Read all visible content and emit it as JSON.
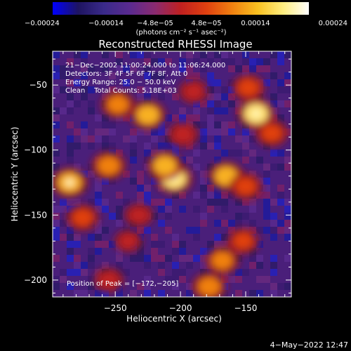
{
  "chart_data": {
    "type": "heatmap",
    "title": "Reconstructed RHESSI Image",
    "xlabel": "Heliocentric X (arcsec)",
    "ylabel": "Heliocentric Y (arcsec)",
    "xlim": [
      -298,
      -115
    ],
    "ylim": [
      -213,
      -24
    ],
    "x_ticks": [
      -250,
      -200,
      -150
    ],
    "x_tick_labels": [
      "−250",
      "−200",
      "−150"
    ],
    "y_ticks": [
      -50,
      -100,
      -150,
      -200
    ],
    "y_tick_labels": [
      "−50",
      "−100",
      "−150",
      "−200"
    ],
    "colorbar": {
      "range": [
        -0.00024,
        0.00024
      ],
      "ticks": [
        -0.00024,
        -0.00014,
        -4.8e-05,
        4.8e-05,
        0.00014,
        0.00024
      ],
      "tick_labels": [
        "−0.00024",
        "−0.00014",
        "−4.8e−05",
        "4.8e−05",
        "0.00014",
        "0.00024"
      ],
      "units_label": "(photons cm⁻² s⁻¹ asec⁻²)",
      "colors": [
        "#0000ff",
        "#1e1460",
        "#3a2a8a",
        "#5a2a90",
        "#8a2a70",
        "#c02020",
        "#e04010",
        "#f08010",
        "#f8c020",
        "#ffee80",
        "#ffffff"
      ]
    },
    "peak_position": [
      -172,
      -205
    ],
    "bright_features": [
      {
        "x": -205,
        "y": -122,
        "level": 0.95
      },
      {
        "x": -212,
        "y": -112,
        "level": 0.85
      },
      {
        "x": -225,
        "y": -73,
        "level": 0.85
      },
      {
        "x": -248,
        "y": -65,
        "level": 0.75
      },
      {
        "x": -255,
        "y": -112,
        "level": 0.8
      },
      {
        "x": -285,
        "y": -125,
        "level": 0.9
      },
      {
        "x": -275,
        "y": -152,
        "level": 0.7
      },
      {
        "x": -190,
        "y": -55,
        "level": 0.55
      },
      {
        "x": -165,
        "y": -120,
        "level": 0.85
      },
      {
        "x": -150,
        "y": -128,
        "level": 0.7
      },
      {
        "x": -142,
        "y": -72,
        "level": 0.95
      },
      {
        "x": -148,
        "y": -52,
        "level": 0.7
      },
      {
        "x": -130,
        "y": -87,
        "level": 0.7
      },
      {
        "x": -168,
        "y": -185,
        "level": 0.75
      },
      {
        "x": -178,
        "y": -205,
        "level": 0.8
      },
      {
        "x": -152,
        "y": -170,
        "level": 0.65
      },
      {
        "x": -255,
        "y": -200,
        "level": 0.55
      },
      {
        "x": -232,
        "y": -150,
        "level": 0.5
      },
      {
        "x": -240,
        "y": -170,
        "level": 0.45
      },
      {
        "x": -198,
        "y": -88,
        "level": 0.6
      }
    ]
  },
  "annotations": {
    "line1": "21−Dec−2002 11:00:24.000 to 11:06:24.000",
    "line2": "Detectors: 3F 4F 5F 6F 7F 8F, Att 0",
    "line3": "Energy Range: 25.0 − 50.0 keV",
    "line4": "Clean    Total Counts: 5.18E+03",
    "peak": "Position of Peak = [−172,−205]"
  },
  "timestamp": "4−May−2022 12:47"
}
